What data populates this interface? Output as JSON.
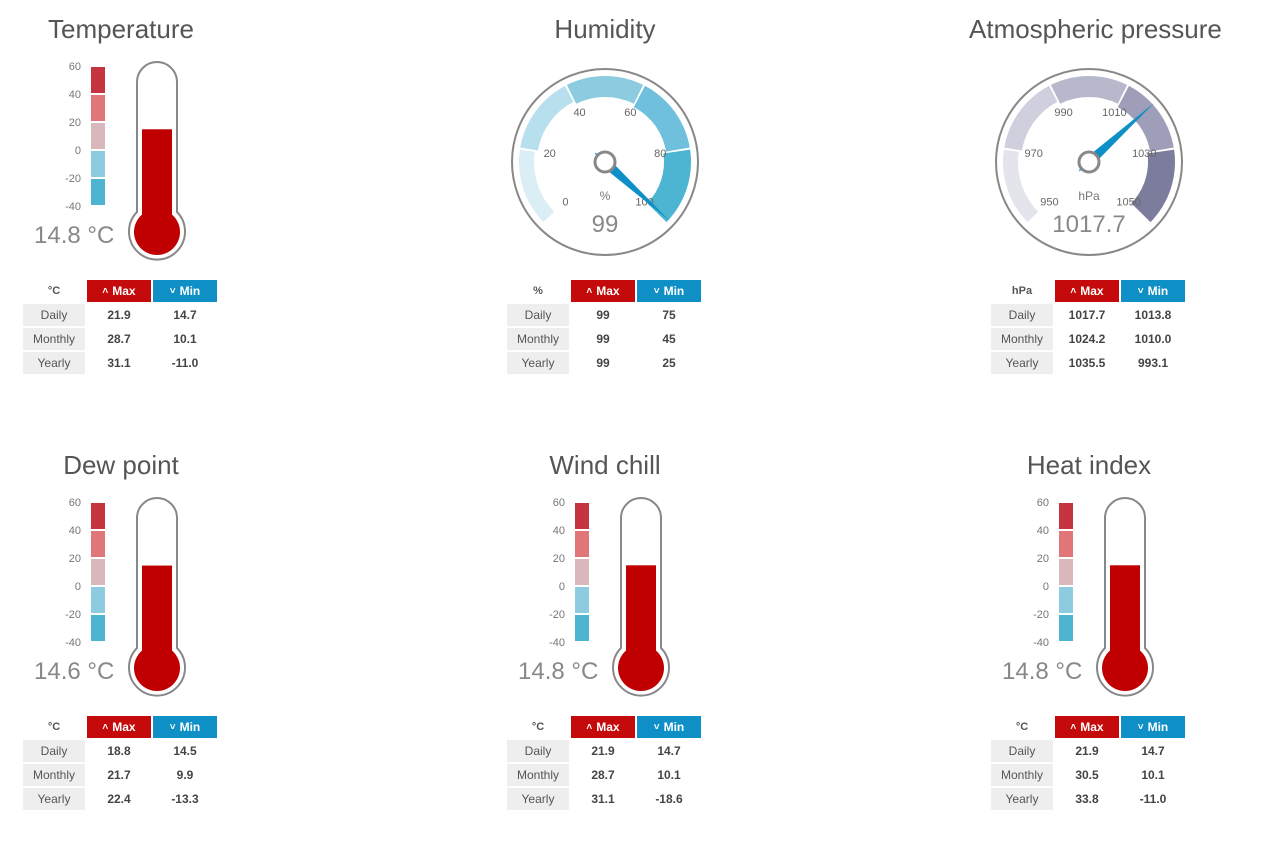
{
  "headers": {
    "max": "Max",
    "min": "Min"
  },
  "row_labels": [
    "Daily",
    "Monthly",
    "Yearly"
  ],
  "thermo_ticks": [
    "60",
    "40",
    "20",
    "0",
    "-20",
    "-40"
  ],
  "thermo_scale_colors": [
    "#c63440",
    "#e0757a",
    "#d8b8bd",
    "#8ccbe0",
    "#4db5d2"
  ],
  "colors": {
    "max": "#c40a0a",
    "min": "#0e8fc6",
    "mercury": "#c00000",
    "needle": "#0e8fc6"
  },
  "temperature": {
    "title": "Temperature",
    "value_label": "14.8 °C",
    "value": 14.8,
    "unit": "°C",
    "rows": [
      [
        "21.9",
        "14.7"
      ],
      [
        "28.7",
        "10.1"
      ],
      [
        "31.1",
        "-11.0"
      ]
    ]
  },
  "humidity": {
    "title": "Humidity",
    "value_label": "99",
    "value": 99,
    "unit": "%",
    "ticks": [
      "0",
      "20",
      "40",
      "60",
      "80",
      "100"
    ],
    "rows": [
      [
        "99",
        "75"
      ],
      [
        "99",
        "45"
      ],
      [
        "99",
        "25"
      ]
    ]
  },
  "pressure": {
    "title": "Atmospheric pressure",
    "value_label": "1017.7",
    "value": 1017.7,
    "unit": "hPa",
    "ticks": [
      "950",
      "970",
      "990",
      "1010",
      "1030",
      "1050"
    ],
    "rows": [
      [
        "1017.7",
        "1013.8"
      ],
      [
        "1024.2",
        "1010.0"
      ],
      [
        "1035.5",
        "993.1"
      ]
    ]
  },
  "dewpoint": {
    "title": "Dew point",
    "value_label": "14.6 °C",
    "value": 14.6,
    "unit": "°C",
    "rows": [
      [
        "18.8",
        "14.5"
      ],
      [
        "21.7",
        "9.9"
      ],
      [
        "22.4",
        "-13.3"
      ]
    ]
  },
  "windchill": {
    "title": "Wind chill",
    "value_label": "14.8 °C",
    "value": 14.8,
    "unit": "°C",
    "rows": [
      [
        "21.9",
        "14.7"
      ],
      [
        "28.7",
        "10.1"
      ],
      [
        "31.1",
        "-18.6"
      ]
    ]
  },
  "heatindex": {
    "title": "Heat index",
    "value_label": "14.8 °C",
    "value": 14.8,
    "unit": "°C",
    "rows": [
      [
        "21.9",
        "14.7"
      ],
      [
        "30.5",
        "10.1"
      ],
      [
        "33.8",
        "-11.0"
      ]
    ]
  }
}
